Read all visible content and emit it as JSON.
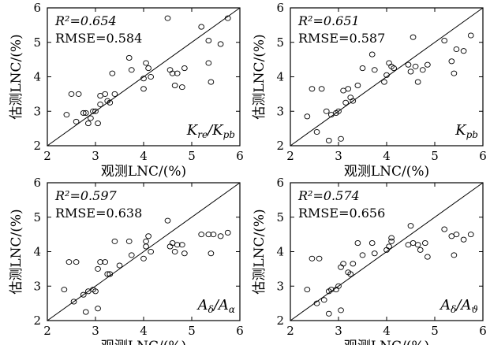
{
  "chart_data": [
    {
      "type": "scatter",
      "panel_tag": {
        "main": "K",
        "sub": "re",
        "sep": "/",
        "main2": "K",
        "sub2": "pb"
      },
      "stats": {
        "r2": "R²=0.654",
        "rmse": "RMSE=0.584"
      },
      "xlabel": "观测LNC/(%)",
      "ylabel": "估测LNC/(%)",
      "xlim": [
        2,
        6
      ],
      "ylim": [
        2,
        6
      ],
      "xticks": [
        "2",
        "3",
        "4",
        "5",
        "6"
      ],
      "yticks": [
        "2",
        "3",
        "4",
        "5",
        "6"
      ],
      "reference_line": "1:1",
      "points": [
        [
          2.4,
          2.9
        ],
        [
          2.5,
          3.5
        ],
        [
          2.6,
          2.7
        ],
        [
          2.65,
          3.5
        ],
        [
          2.75,
          2.95
        ],
        [
          2.8,
          2.95
        ],
        [
          2.85,
          2.65
        ],
        [
          2.9,
          2.8
        ],
        [
          2.95,
          3.0
        ],
        [
          3.0,
          3.0
        ],
        [
          3.05,
          2.65
        ],
        [
          3.1,
          3.2
        ],
        [
          3.1,
          3.45
        ],
        [
          3.2,
          3.5
        ],
        [
          3.25,
          3.3
        ],
        [
          3.3,
          3.25
        ],
        [
          3.35,
          4.1
        ],
        [
          3.4,
          3.5
        ],
        [
          3.7,
          4.55
        ],
        [
          3.75,
          4.2
        ],
        [
          4.0,
          3.65
        ],
        [
          4.0,
          3.95
        ],
        [
          4.05,
          4.4
        ],
        [
          4.1,
          4.25
        ],
        [
          4.15,
          4.0
        ],
        [
          4.5,
          5.7
        ],
        [
          4.55,
          4.2
        ],
        [
          4.6,
          4.1
        ],
        [
          4.65,
          3.75
        ],
        [
          4.7,
          4.1
        ],
        [
          4.8,
          3.7
        ],
        [
          4.85,
          4.25
        ],
        [
          5.2,
          5.45
        ],
        [
          5.35,
          5.05
        ],
        [
          5.35,
          4.4
        ],
        [
          5.4,
          3.85
        ],
        [
          5.6,
          4.95
        ],
        [
          5.75,
          5.7
        ]
      ]
    },
    {
      "type": "scatter",
      "panel_tag": {
        "main": "K",
        "sub": "pb"
      },
      "stats": {
        "r2": "R²=0.651",
        "rmse": "RMSE=0.587"
      },
      "xlabel": "观测LNC/(%)",
      "ylabel": "估测LNC/(%)",
      "xlim": [
        2,
        6
      ],
      "ylim": [
        2,
        6
      ],
      "xticks": [
        "2",
        "3",
        "4",
        "5",
        "6"
      ],
      "yticks": [
        "2",
        "3",
        "4",
        "5",
        "6"
      ],
      "reference_line": "1:1",
      "points": [
        [
          2.35,
          2.85
        ],
        [
          2.45,
          3.65
        ],
        [
          2.55,
          2.4
        ],
        [
          2.65,
          3.65
        ],
        [
          2.75,
          3.0
        ],
        [
          2.8,
          2.15
        ],
        [
          2.85,
          2.9
        ],
        [
          2.95,
          2.95
        ],
        [
          3.0,
          3.0
        ],
        [
          3.05,
          2.2
        ],
        [
          3.1,
          3.6
        ],
        [
          3.15,
          3.25
        ],
        [
          3.2,
          3.65
        ],
        [
          3.25,
          3.4
        ],
        [
          3.3,
          3.3
        ],
        [
          3.4,
          3.75
        ],
        [
          3.5,
          4.25
        ],
        [
          3.7,
          4.65
        ],
        [
          3.75,
          4.2
        ],
        [
          3.95,
          3.85
        ],
        [
          4.0,
          4.05
        ],
        [
          4.05,
          4.4
        ],
        [
          4.1,
          4.3
        ],
        [
          4.15,
          4.25
        ],
        [
          4.45,
          4.35
        ],
        [
          4.5,
          4.15
        ],
        [
          4.55,
          5.15
        ],
        [
          4.6,
          4.3
        ],
        [
          4.65,
          3.85
        ],
        [
          4.75,
          4.2
        ],
        [
          4.85,
          4.35
        ],
        [
          5.2,
          5.05
        ],
        [
          5.35,
          4.45
        ],
        [
          5.4,
          4.1
        ],
        [
          5.45,
          4.8
        ],
        [
          5.6,
          4.75
        ],
        [
          5.75,
          5.2
        ]
      ]
    },
    {
      "type": "scatter",
      "panel_tag": {
        "main": "A",
        "sub": "δ",
        "sep": "/",
        "main2": "A",
        "sub2": "α"
      },
      "stats": {
        "r2": "R²=0.597",
        "rmse": "RMSE=0.638"
      },
      "xlabel": "观测LNC/(%)",
      "ylabel": "估测LNC/(%)",
      "xlim": [
        2,
        6
      ],
      "ylim": [
        2,
        6
      ],
      "xticks": [
        "2",
        "3",
        "4",
        "5",
        "6"
      ],
      "yticks": [
        "2",
        "3",
        "4",
        "5",
        "6"
      ],
      "reference_line": "1:1",
      "points": [
        [
          2.35,
          2.9
        ],
        [
          2.45,
          3.7
        ],
        [
          2.55,
          2.55
        ],
        [
          2.6,
          3.7
        ],
        [
          2.75,
          2.75
        ],
        [
          2.8,
          2.25
        ],
        [
          2.85,
          2.85
        ],
        [
          2.95,
          2.9
        ],
        [
          3.0,
          2.85
        ],
        [
          3.05,
          2.35
        ],
        [
          3.05,
          3.5
        ],
        [
          3.1,
          3.7
        ],
        [
          3.2,
          3.7
        ],
        [
          3.25,
          3.35
        ],
        [
          3.3,
          3.35
        ],
        [
          3.4,
          4.3
        ],
        [
          3.5,
          3.6
        ],
        [
          3.7,
          4.3
        ],
        [
          3.75,
          3.9
        ],
        [
          4.0,
          3.8
        ],
        [
          4.05,
          4.15
        ],
        [
          4.05,
          4.3
        ],
        [
          4.1,
          4.45
        ],
        [
          4.15,
          4.0
        ],
        [
          4.5,
          4.9
        ],
        [
          4.55,
          4.15
        ],
        [
          4.6,
          4.25
        ],
        [
          4.65,
          4.0
        ],
        [
          4.7,
          4.2
        ],
        [
          4.8,
          4.2
        ],
        [
          4.85,
          3.95
        ],
        [
          5.2,
          4.5
        ],
        [
          5.35,
          4.5
        ],
        [
          5.4,
          3.95
        ],
        [
          5.45,
          4.5
        ],
        [
          5.6,
          4.45
        ],
        [
          5.75,
          4.55
        ]
      ]
    },
    {
      "type": "scatter",
      "panel_tag": {
        "main": "A",
        "sub": "δ",
        "sep": "/",
        "main2": "A",
        "sub2": "ϑ"
      },
      "stats": {
        "r2": "R²=0.574",
        "rmse": "RMSE=0.656"
      },
      "xlabel": "观测LNC/(%)",
      "ylabel": "估测LNC/(%)",
      "xlim": [
        2,
        6
      ],
      "ylim": [
        2,
        6
      ],
      "xticks": [
        "2",
        "3",
        "4",
        "5",
        "6"
      ],
      "yticks": [
        "2",
        "3",
        "4",
        "5",
        "6"
      ],
      "reference_line": "1:1",
      "points": [
        [
          2.35,
          2.9
        ],
        [
          2.45,
          3.8
        ],
        [
          2.55,
          2.5
        ],
        [
          2.6,
          3.8
        ],
        [
          2.7,
          2.6
        ],
        [
          2.8,
          2.2
        ],
        [
          2.8,
          2.85
        ],
        [
          2.85,
          2.9
        ],
        [
          2.95,
          2.9
        ],
        [
          3.0,
          3.0
        ],
        [
          3.05,
          2.3
        ],
        [
          3.05,
          3.55
        ],
        [
          3.1,
          3.65
        ],
        [
          3.2,
          3.4
        ],
        [
          3.25,
          3.35
        ],
        [
          3.3,
          3.65
        ],
        [
          3.4,
          4.25
        ],
        [
          3.5,
          3.9
        ],
        [
          3.7,
          4.25
        ],
        [
          3.75,
          3.95
        ],
        [
          4.0,
          4.05
        ],
        [
          4.05,
          4.15
        ],
        [
          4.1,
          4.4
        ],
        [
          4.1,
          4.3
        ],
        [
          4.45,
          4.2
        ],
        [
          4.5,
          4.75
        ],
        [
          4.55,
          4.25
        ],
        [
          4.65,
          4.2
        ],
        [
          4.7,
          4.05
        ],
        [
          4.8,
          4.25
        ],
        [
          4.85,
          3.85
        ],
        [
          5.2,
          4.65
        ],
        [
          5.35,
          4.45
        ],
        [
          5.4,
          3.9
        ],
        [
          5.45,
          4.5
        ],
        [
          5.6,
          4.35
        ],
        [
          5.75,
          4.5
        ]
      ]
    }
  ]
}
